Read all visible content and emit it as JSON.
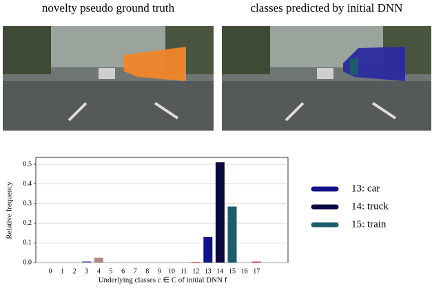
{
  "panels": [
    {
      "caption": "novelty pseudo ground truth"
    },
    {
      "caption": "classes predicted by initial DNN"
    }
  ],
  "chart_data": {
    "type": "bar",
    "xlabel": "Underlying classes c ∈ C of initial DNN f",
    "ylabel": "Relative frequency",
    "categories": [
      "0",
      "1",
      "2",
      "3",
      "4",
      "5",
      "6",
      "7",
      "8",
      "9",
      "10",
      "11",
      "12",
      "13",
      "14",
      "15",
      "16",
      "17"
    ],
    "values": [
      0,
      0,
      0,
      0.006,
      0.025,
      0,
      0,
      0,
      0,
      0,
      0,
      0,
      0.003,
      0.13,
      0.51,
      0.285,
      0,
      0.005
    ],
    "colors": [
      "#804080",
      "#f4e0a0",
      "#fa64a0",
      "#6060b0",
      "#b08a8a",
      "#bebebe",
      "#999999",
      "#faa01e",
      "#dcdc00",
      "#6b8e23",
      "#98fb98",
      "#4682b4",
      "#cc3030",
      "#12128a",
      "#0a0a40",
      "#1d5c6a",
      "#000064",
      "#cc3030"
    ],
    "ylim": [
      0,
      0.535
    ],
    "yticks": [
      {
        "value": 0,
        "label": "0.0"
      },
      0.1,
      0.2,
      0.3,
      0.4,
      0.5
    ],
    "grid": true,
    "legend": [
      {
        "label": "13: car",
        "color": "#12128a"
      },
      {
        "label": "14: truck",
        "color": "#0a0a40"
      },
      {
        "label": "15: train",
        "color": "#1d5c6a"
      }
    ]
  }
}
